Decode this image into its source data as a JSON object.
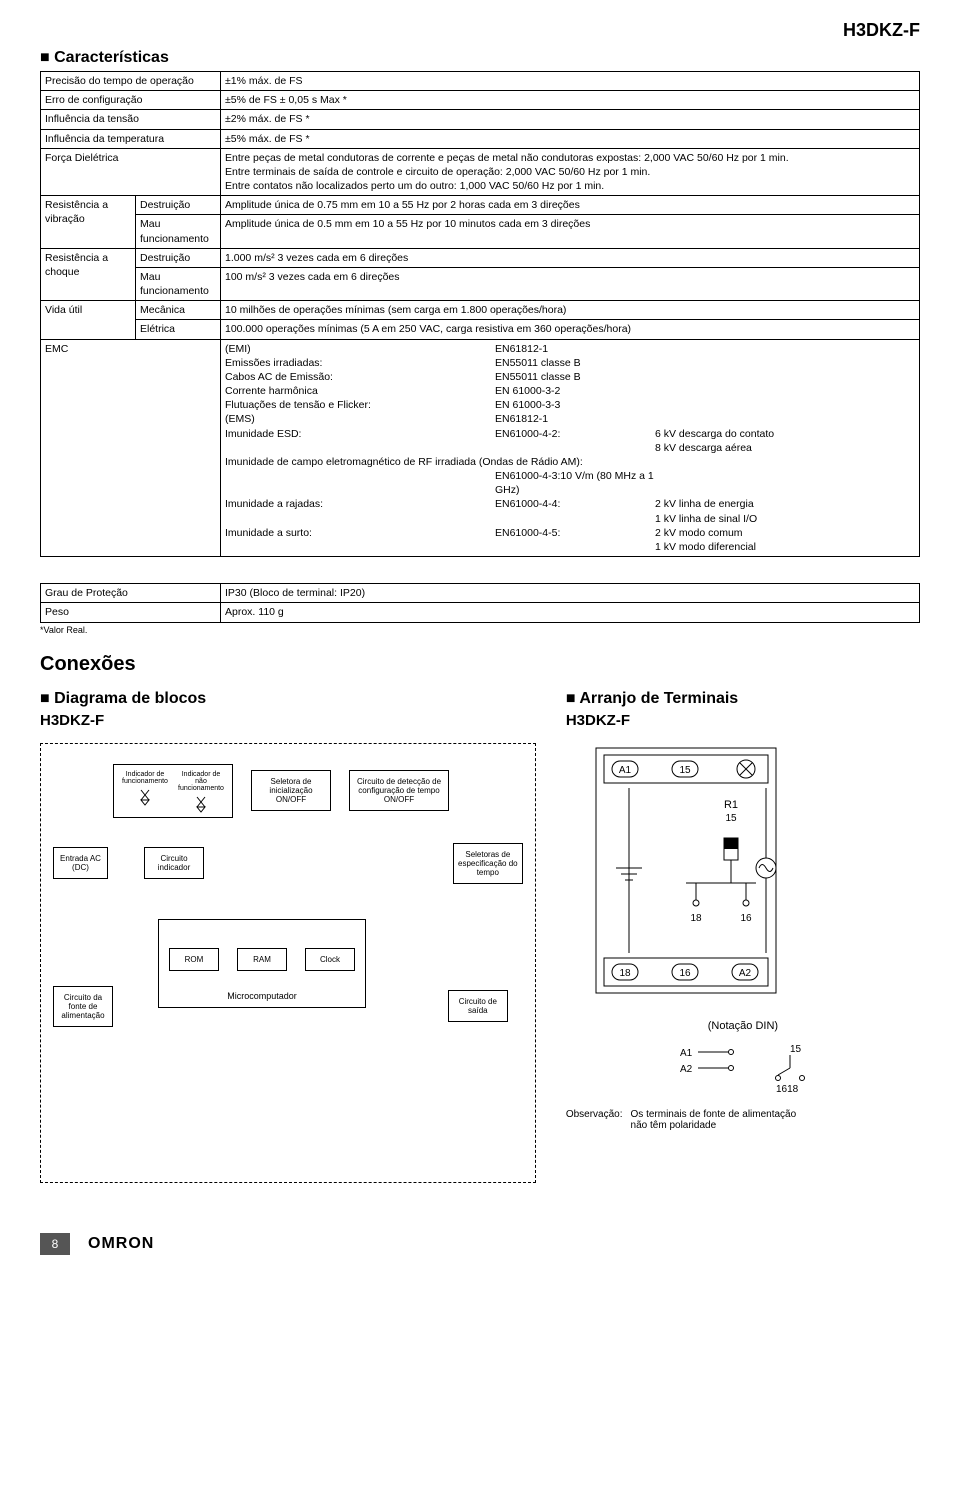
{
  "model": "H3DKZ-F",
  "characteristics_title": "Características",
  "specs": {
    "r1": {
      "label": "Precisão do tempo de operação",
      "value": "±1% máx. de FS"
    },
    "r2": {
      "label": "Erro de configuração",
      "value": "±5% de FS ± 0,05 s Max *"
    },
    "r3": {
      "label": "Influência da tensão",
      "value": "±2% máx. de FS *"
    },
    "r4": {
      "label": "Influência da temperatura",
      "value": "±5% máx. de FS *"
    },
    "r5": {
      "label": "Força Dielétrica",
      "value": "Entre peças de metal condutoras de corrente e peças de metal não condutoras expostas: 2,000 VAC 50/60 Hz por 1 min.\nEntre terminais de saída de controle e circuito de operação: 2,000 VAC 50/60 Hz por 1 min.\nEntre contatos não localizados perto um do outro: 1,000 VAC 50/60 Hz  por 1 min."
    },
    "vib": {
      "label": "Resistência a vibração",
      "sub1": "Destruição",
      "val1": "Amplitude única de 0.75 mm em 10 a 55 Hz por 2 horas cada em 3 direções",
      "sub2": "Mau funcionamento",
      "val2": "Amplitude única de 0.5 mm em 10 a 55 Hz por 10 minutos cada em 3 direções"
    },
    "shock": {
      "label": "Resistência a choque",
      "sub1": "Destruição",
      "val1": "1.000 m/s² 3 vezes cada em 6 direções",
      "sub2": "Mau funcionamento",
      "val2": "100 m/s² 3 vezes cada em 6 direções"
    },
    "life": {
      "label": "Vida útil",
      "sub1": "Mecânica",
      "val1": "10 milhões de operações mínimas (sem carga em 1.800 operações/hora)",
      "sub2": "Elétrica",
      "val2": "100.000 operações mínimas (5 A em 250 VAC, carga resistiva em 360 operações/hora)"
    },
    "emc": {
      "label": "EMC",
      "items": [
        {
          "a": "(EMI)",
          "b": "EN61812-1",
          "c": ""
        },
        {
          "a": "Emissões irradiadas:",
          "b": "EN55011  classe B",
          "c": ""
        },
        {
          "a": "Cabos AC de Emissão:",
          "b": "EN55011 classe B",
          "c": ""
        },
        {
          "a": "Corrente harmônica",
          "b": "EN 61000-3-2",
          "c": ""
        },
        {
          "a": "Flutuações de tensão e Flicker:",
          "b": "EN 61000-3-3",
          "c": ""
        },
        {
          "a": "(EMS)",
          "b": "EN61812-1",
          "c": ""
        },
        {
          "a": "Imunidade ESD:",
          "b": "EN61000-4-2:",
          "c": "6 kV descarga do contato"
        },
        {
          "a": "",
          "b": "",
          "c": "8 kV descarga aérea"
        }
      ],
      "rf_line": "Imunidade de campo eletromagnético de RF irradiada (Ondas de Rádio AM):",
      "rf_sub": "EN61000-4-3:10 V/m (80 MHz a 1 GHz)",
      "items2": [
        {
          "a": "Imunidade a rajadas:",
          "b": "EN61000-4-4:",
          "c": "2 kV linha de energia"
        },
        {
          "a": "",
          "b": "",
          "c": "1 kV linha de sinal I/O"
        },
        {
          "a": "Imunidade a surto:",
          "b": "EN61000-4-5:",
          "c": "2 kV modo comum"
        },
        {
          "a": "",
          "b": "",
          "c": "1 kV modo diferencial"
        }
      ]
    },
    "prot": {
      "label": "Grau de Proteção",
      "value": "IP30 (Bloco de terminal: IP20)"
    },
    "peso": {
      "label": "Peso",
      "value": "Aprox. 110 g"
    },
    "note": "*Valor Real."
  },
  "connections_title": "Conexões",
  "block_title": "Diagrama de blocos",
  "terminal_title": "Arranjo de Terminais",
  "terminal_model": "H3DKZ-F",
  "block_model": "H3DKZ-F",
  "blocks": {
    "ind_on": "Indicador de funcionamento",
    "ind_off": "Indicador de não funcionamento",
    "sel_init": "Seletora de inicialização ON/OFF",
    "detect": "Circuito de detecção de configuração de tempo ON/OFF",
    "input": "Entrada AC (DC)",
    "ind_circ": "Circuito indicador",
    "time_sel": "Seletoras de especificação do tempo",
    "rom": "ROM",
    "ram": "RAM",
    "clock": "Clock",
    "micro": "Microcomputador",
    "psu": "Circuito da fonte de alimentação",
    "out": "Circuito de saída"
  },
  "terminal_labels": {
    "a1": "A1",
    "t15": "15",
    "r1": "R1",
    "t18": "18",
    "t16": "16",
    "b18": "18",
    "b16": "16",
    "a2": "A2"
  },
  "din_caption": "(Notação DIN)",
  "din": {
    "a1": "A1",
    "a2": "A2",
    "t15": "15",
    "t1618": "1618"
  },
  "obs_label": "Observação:",
  "obs_text": "Os terminais de fonte de alimentação não têm polaridade",
  "page": "8",
  "logo": "OMRON"
}
